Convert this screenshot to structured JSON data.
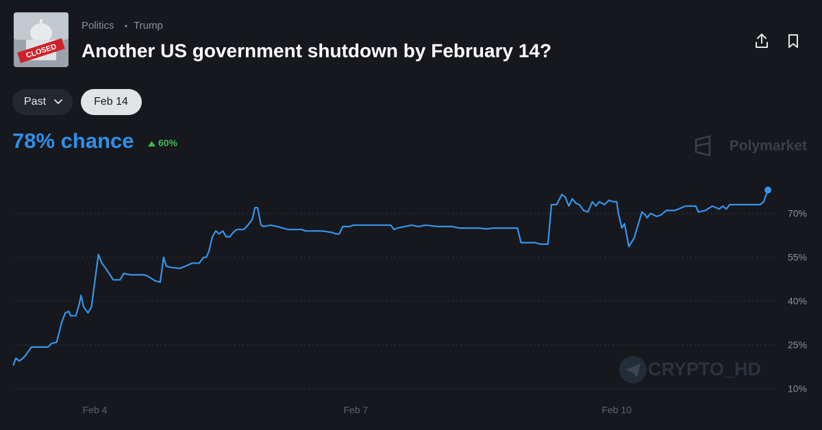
{
  "header": {
    "category": "Politics",
    "tag": "Trump",
    "title": "Another US government shutdown by February 14?",
    "thumbnail": {
      "label": "CLOSED"
    }
  },
  "controls": {
    "range": "Past",
    "outcome": "Feb 14"
  },
  "summary": {
    "chance": "78% chance",
    "change": "60%"
  },
  "watermarks": {
    "brand": "Polymarket",
    "channel": "CRYPTO_HD"
  },
  "chart_data": {
    "type": "line",
    "color": "#3596ee",
    "x": [
      3.06,
      3.09,
      3.13,
      3.19,
      3.27,
      3.46,
      3.5,
      3.56,
      3.62,
      3.66,
      3.7,
      3.72,
      3.78,
      3.82,
      3.84,
      3.87,
      3.92,
      3.96,
      4.0,
      4.04,
      4.08,
      4.13,
      4.21,
      4.29,
      4.33,
      4.41,
      4.57,
      4.61,
      4.69,
      4.75,
      4.79,
      4.82,
      4.88,
      4.98,
      5.04,
      5.12,
      5.2,
      5.25,
      5.28,
      5.31,
      5.35,
      5.39,
      5.43,
      5.47,
      5.51,
      5.55,
      5.59,
      5.63,
      5.71,
      5.76,
      5.81,
      5.84,
      5.87,
      5.91,
      5.94,
      6.02,
      6.1,
      6.22,
      6.38,
      6.42,
      6.61,
      6.73,
      6.77,
      6.81,
      6.85,
      6.93,
      6.97,
      7.17,
      7.4,
      7.44,
      7.48,
      7.56,
      7.64,
      7.72,
      7.8,
      7.95,
      8.11,
      8.19,
      8.35,
      8.43,
      8.5,
      8.58,
      8.74,
      8.86,
      8.9,
      9.06,
      9.13,
      9.21,
      9.25,
      9.31,
      9.37,
      9.41,
      9.45,
      9.49,
      9.53,
      9.57,
      9.62,
      9.67,
      9.72,
      9.76,
      9.8,
      9.86,
      9.91,
      9.96,
      10.0,
      10.02,
      10.06,
      10.09,
      10.14,
      10.2,
      10.25,
      10.29,
      10.33,
      10.35,
      10.39,
      10.46,
      10.51,
      10.57,
      10.67,
      10.71,
      10.79,
      10.91,
      10.94,
      11.02,
      11.1,
      11.18,
      11.22,
      11.26,
      11.3,
      11.65,
      11.69,
      11.74
    ],
    "values": [
      18,
      20.5,
      19.5,
      21,
      24.3,
      24.3,
      25.5,
      26,
      33,
      36,
      36.5,
      35,
      35,
      39,
      42,
      38,
      36,
      38,
      47,
      56,
      53,
      51,
      47.3,
      47.3,
      49.5,
      49,
      49,
      48.5,
      47,
      46.5,
      55,
      52,
      51.5,
      51.2,
      52,
      53,
      53,
      55,
      55,
      57,
      62,
      64,
      63,
      64,
      62,
      62,
      63.5,
      64.5,
      64.5,
      66,
      68,
      72,
      72,
      66,
      65.5,
      66,
      65.5,
      64.5,
      64.5,
      64,
      64,
      63.5,
      63,
      63,
      65.5,
      65.5,
      66,
      66,
      66,
      64.5,
      65,
      65.5,
      66,
      65.5,
      66,
      65.5,
      65.5,
      65,
      65,
      65,
      64.7,
      65,
      65,
      65,
      60,
      60,
      59.5,
      59.5,
      73,
      73,
      76.5,
      75.5,
      72.5,
      75,
      73.5,
      73,
      71,
      70.5,
      74,
      72.5,
      74,
      73,
      74.5,
      74,
      74,
      70,
      65,
      66.5,
      58.7,
      61.5,
      66.5,
      70.5,
      69.5,
      68.5,
      70,
      69,
      69.5,
      71,
      71,
      71.5,
      72.5,
      72.5,
      70.5,
      71,
      72.5,
      71.5,
      72.5,
      71.5,
      73,
      73,
      74,
      78
    ],
    "xlim": [
      3.05,
      11.81
    ],
    "xticks": [
      {
        "value": 4,
        "label": "Feb 4"
      },
      {
        "value": 7,
        "label": "Feb 7"
      },
      {
        "value": 10,
        "label": "Feb 10"
      }
    ],
    "ylim": [
      10,
      80
    ],
    "yticks": [
      {
        "value": 10,
        "label": "10%"
      },
      {
        "value": 25,
        "label": "25%"
      },
      {
        "value": 40,
        "label": "40%"
      },
      {
        "value": 55,
        "label": "55%"
      },
      {
        "value": 70,
        "label": "70%"
      }
    ],
    "grid": true
  }
}
